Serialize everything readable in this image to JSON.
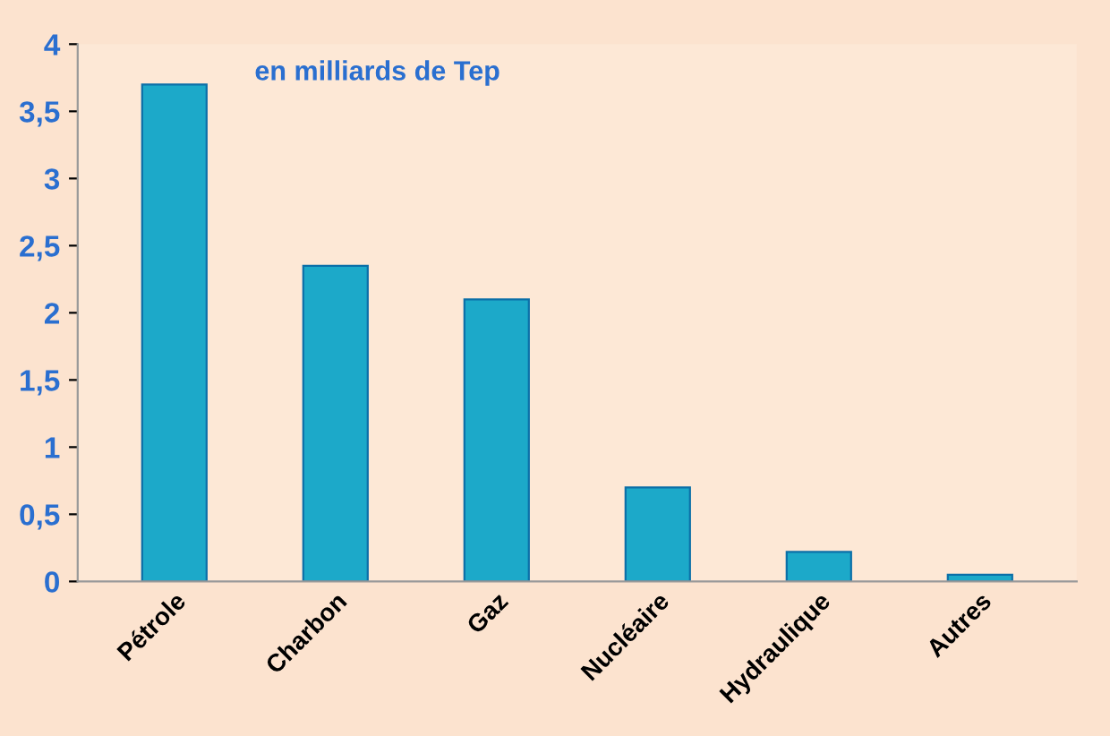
{
  "chart_data": {
    "type": "bar",
    "title": "en milliards de Tep",
    "categories": [
      "Pétrole",
      "Charbon",
      "Gaz",
      "Nucléaire",
      "Hydraulique",
      "Autres"
    ],
    "values": [
      3.7,
      2.35,
      2.1,
      0.7,
      0.22,
      0.05
    ],
    "color": "#1ca9c9",
    "ylim": [
      0,
      4
    ],
    "yticks": [
      0,
      {
        "value": 0.5,
        "label": "0,5"
      },
      1,
      {
        "value": 1.5,
        "label": "1,5"
      },
      2,
      {
        "value": 2.5,
        "label": "2,5"
      },
      3,
      {
        "value": 3.5,
        "label": "3,5"
      },
      4
    ],
    "grid": false,
    "legend": false
  }
}
